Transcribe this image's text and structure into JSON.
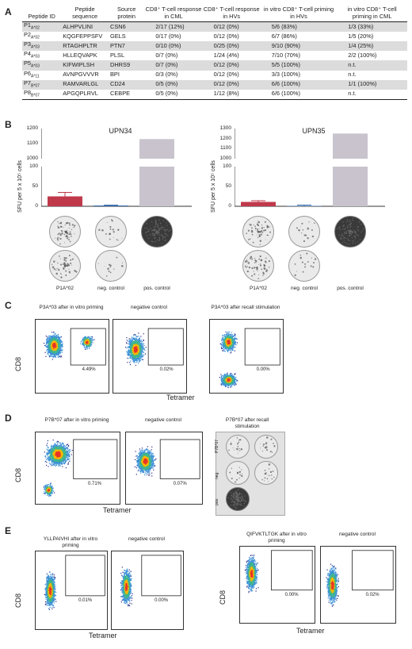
{
  "panel_letters": {
    "a": "A",
    "b": "B",
    "c": "C",
    "d": "D",
    "e": "E"
  },
  "table": {
    "headers": [
      "Peptide ID",
      "Peptide sequence",
      "Source protein",
      "CD8⁺ T-cell response in CML",
      "CD8⁺ T-cell response in HVs",
      "in vitro CD8⁺ T-cell priming in HVs",
      "in vitro CD8⁺ T-cell priming in CML"
    ],
    "rows": [
      {
        "id": "P1",
        "allele": "A*02",
        "seq": "ALHPVLINI",
        "protein": "CSN6",
        "cml": "2/17 (12%)",
        "hv": "0/12 (0%)",
        "prime_hv": "5/6 (83%)",
        "prime_cml": "1/3 (33%)"
      },
      {
        "id": "P2",
        "allele": "A*02",
        "seq": "KQGFEPPSFV",
        "protein": "GELS",
        "cml": "0/17 (0%)",
        "hv": "0/12 (0%)",
        "prime_hv": "6/7 (86%)",
        "prime_cml": "1/5 (20%)"
      },
      {
        "id": "P3",
        "allele": "A*03",
        "seq": "RTAGHPLTR",
        "protein": "PTN7",
        "cml": "0/10 (0%)",
        "hv": "0/25 (0%)",
        "prime_hv": "9/10 (90%)",
        "prime_cml": "1/4 (25%)"
      },
      {
        "id": "P4",
        "allele": "A*03",
        "seq": "HLLEQVAPK",
        "protein": "PLSL",
        "cml": "0/7 (0%)",
        "hv": "1/24 (4%)",
        "prime_hv": "7/10 (70%)",
        "prime_cml": "2/2 (100%)"
      },
      {
        "id": "P5",
        "allele": "A*03",
        "seq": "KIFWIPLSH",
        "protein": "DHRS9",
        "cml": "0/7 (0%)",
        "hv": "0/12 (0%)",
        "prime_hv": "5/5 (100%)",
        "prime_cml": "n.t."
      },
      {
        "id": "P6",
        "allele": "A*11",
        "seq": "AVNPGVVVR",
        "protein": "BPI",
        "cml": "0/3 (0%)",
        "hv": "0/12 (0%)",
        "prime_hv": "3/3 (100%)",
        "prime_cml": "n.t."
      },
      {
        "id": "P7",
        "allele": "B*07",
        "seq": "RAMVARLGL",
        "protein": "CD24",
        "cml": "0/5 (0%)",
        "hv": "0/12 (0%)",
        "prime_hv": "6/6 (100%)",
        "prime_cml": "1/1 (100%)"
      },
      {
        "id": "P8",
        "allele": "B*07",
        "seq": "APGQPLRVL",
        "protein": "CEBPE",
        "cml": "0/5 (0%)",
        "hv": "1/12 (8%)",
        "prime_hv": "6/6 (100%)",
        "prime_cml": "n.t."
      }
    ]
  },
  "elispot": {
    "ylabel": "SFU per 5 x 10⁵ cells",
    "xlabels": [
      "P1A*02",
      "neg. control",
      "pos. control"
    ],
    "colors": {
      "peptide": "#c0394b",
      "neg": "#3b6fb0",
      "pos": "#c9c3cd"
    },
    "charts": [
      {
        "title": "UPN34",
        "ticks_low": [
          "0",
          "50",
          "100"
        ],
        "ticks_high": [
          "1000",
          "1100",
          "1200"
        ],
        "values": [
          25,
          2,
          1130
        ],
        "error": [
          10,
          1,
          0
        ]
      },
      {
        "title": "UPN35",
        "ticks_low": [
          "0",
          "50",
          "100"
        ],
        "ticks_high": [
          "1000",
          "1100",
          "1200",
          "1300"
        ],
        "values": [
          11,
          1,
          1250
        ],
        "error": [
          3,
          2,
          0
        ]
      }
    ]
  },
  "panel_c": {
    "plots": [
      {
        "title": "P3A*03 after in vitro priming",
        "pct": "4.49%"
      },
      {
        "title": "negative control",
        "pct": "0.02%"
      },
      {
        "title": "P3A*03 after recall stimulation",
        "pct": "0.00%"
      }
    ],
    "xlabel": "Tetramer",
    "ylabel": "CD8"
  },
  "panel_d": {
    "plots": [
      {
        "title": "P7B*07 after in vitro priming",
        "pct": "0.71%"
      },
      {
        "title": "negative control",
        "pct": "0.07%"
      }
    ],
    "well_title": "P7B*07 after recall stimulation",
    "well_rows": [
      "P7B*07",
      "neg.",
      "pos."
    ],
    "xlabel": "Tetramer",
    "ylabel": "CD8"
  },
  "panel_e": {
    "plots": [
      {
        "title": "YLLPAIVHI after in vitro priming",
        "pct": "0.01%"
      },
      {
        "title": "negative control",
        "pct": "0.00%"
      },
      {
        "title": "QIFVKTLTGK after in vitro priming",
        "pct": "0.00%"
      },
      {
        "title": "negative control",
        "pct": "0.02%"
      }
    ],
    "xlabel": "Tetramer",
    "ylabel": "CD8"
  }
}
